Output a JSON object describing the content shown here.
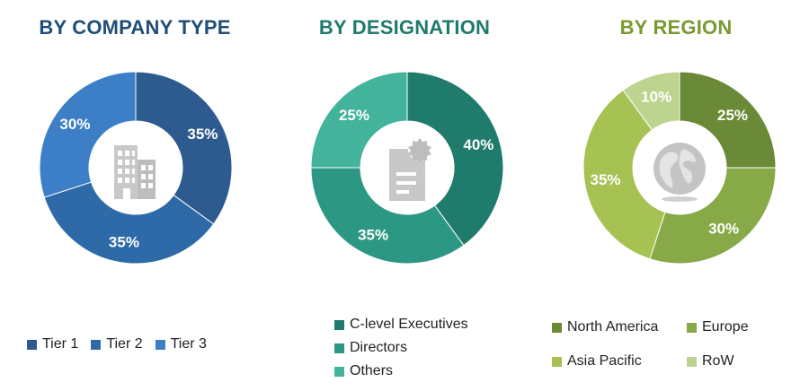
{
  "colors": {
    "company": [
      "#2e5b8f",
      "#2f6aa8",
      "#3d7fc6"
    ],
    "designation": [
      "#1f7b6b",
      "#2c9883",
      "#43b39c"
    ],
    "region": [
      "#6b8a37",
      "#87a947",
      "#a5c253",
      "#bcd48f"
    ]
  },
  "chart_data": [
    {
      "type": "pie",
      "title": "BY COMPANY TYPE",
      "title_color": "#1f4e79",
      "categories": [
        "Tier 1",
        "Tier 2",
        "Tier 3"
      ],
      "values": [
        35,
        35,
        30
      ],
      "labels": [
        "35%",
        "35%",
        "30%"
      ],
      "legend_position": "bottom",
      "center_icon": "building-icon"
    },
    {
      "type": "pie",
      "title": "BY DESIGNATION",
      "title_color": "#1f7b6b",
      "categories": [
        "C-level Executives",
        "Directors",
        "Others"
      ],
      "values": [
        40,
        35,
        25
      ],
      "labels": [
        "40%",
        "35%",
        "25%"
      ],
      "legend_position": "bottom",
      "center_icon": "document-badge-icon"
    },
    {
      "type": "pie",
      "title": "BY REGION",
      "title_color": "#7a9a2e",
      "categories": [
        "North America",
        "Europe",
        "Asia Pacific",
        "RoW"
      ],
      "values": [
        25,
        30,
        35,
        10
      ],
      "labels": [
        "25%",
        "30%",
        "35%",
        "10%"
      ],
      "legend_position": "bottom",
      "center_icon": "globe-icon"
    }
  ]
}
